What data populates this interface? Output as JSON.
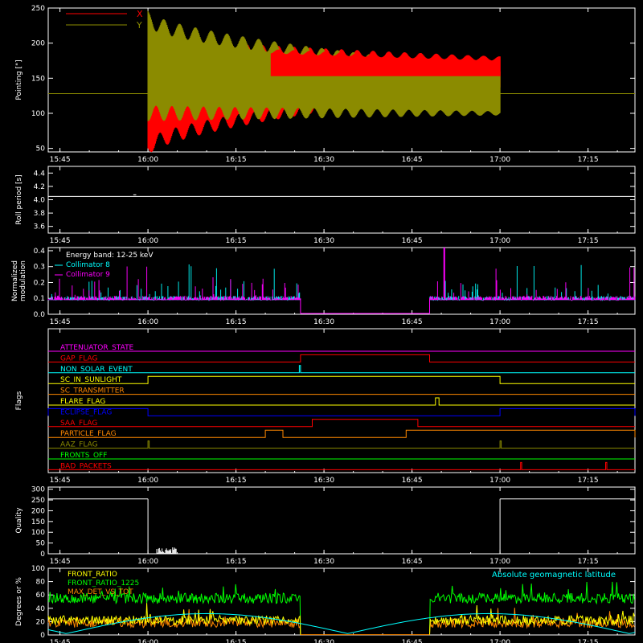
{
  "colors": {
    "bg": "#000000",
    "axis": "#ffffff",
    "x_series": "#ff0000",
    "y_series": "#8b8b00",
    "cyan": "#00ffff",
    "magenta": "#ff00ff",
    "green": "#00ff00",
    "orange": "#ff8800",
    "blue": "#0000ff",
    "yellow": "#ffff00"
  },
  "chart_data": [
    {
      "id": "pointing",
      "type": "line",
      "ylabel": "Pointing [\"]",
      "ylim": [
        45,
        250
      ],
      "yticks": [
        50,
        100,
        150,
        200,
        250
      ],
      "xtick_labels": [
        "15:45",
        "16:00",
        "16:15",
        "16:30",
        "16:45",
        "17:00",
        "17:15"
      ],
      "x_minutes": [
        -15,
        0,
        15,
        30,
        45,
        60,
        75
      ],
      "xlim_minutes": [
        -17,
        83
      ],
      "baseline": 128,
      "series": [
        {
          "name": "X",
          "color": "#ff0000",
          "start_min": 0,
          "end_min": 60,
          "upper_start": 200,
          "upper_end": 178,
          "lower_start": 50,
          "lower_end": 140
        },
        {
          "name": "Y",
          "color": "#8b8b00",
          "start_min": 0,
          "end_min": 60,
          "upper_start": 235,
          "upper_end": 160,
          "lower_start": 100,
          "lower_end": 100
        }
      ]
    },
    {
      "id": "roll",
      "type": "line",
      "ylabel": "Roll period [s]",
      "ylim": [
        3.5,
        4.5
      ],
      "yticks": [
        3.6,
        3.8,
        4.0,
        4.2,
        4.4
      ],
      "ytick_labels": [
        "3.6",
        "3.8",
        "4.0",
        "4.2",
        "4.4"
      ],
      "xtick_labels": [
        "15:45",
        "16:00",
        "16:15",
        "16:30",
        "16:45",
        "17:00",
        "17:15"
      ],
      "value": 4.05
    },
    {
      "id": "modulation",
      "type": "line",
      "ylabel_lines": [
        "Normalized",
        "modulation"
      ],
      "ylim": [
        0,
        0.42
      ],
      "yticks": [
        0.0,
        0.1,
        0.2,
        0.3,
        0.4
      ],
      "ytick_labels": [
        "0.0",
        "0.1",
        "0.2",
        "0.3",
        "0.4"
      ],
      "xtick_labels": [
        "15:45",
        "16:00",
        "16:15",
        "16:30",
        "16:45",
        "17:00",
        "17:15"
      ],
      "legend": [
        {
          "text": "Energy band: 12-25 keV",
          "color": "#ffffff"
        },
        {
          "text": "Collimator 8",
          "color": "#00ffff"
        },
        {
          "text": "Collimator 9",
          "color": "#ff00ff"
        }
      ],
      "gap_minutes": [
        26,
        48
      ],
      "typical_level": 0.1
    },
    {
      "id": "flags",
      "type": "line",
      "ylabel": "Flags",
      "xtick_labels": [
        "15:45",
        "16:00",
        "16:15",
        "16:30",
        "16:45",
        "17:00",
        "17:15"
      ],
      "flags": [
        {
          "name": "ATTENUATOR_STATE",
          "color": "#ff00ff",
          "segments": []
        },
        {
          "name": "GAP_FLAG",
          "color": "#ff0000",
          "segments": [
            [
              26,
              48
            ]
          ]
        },
        {
          "name": "NON_SOLAR_EVENT",
          "color": "#00ffff",
          "segments": [
            [
              25.8,
              26.0
            ]
          ]
        },
        {
          "name": "SC_IN_SUNLIGHT",
          "color": "#ffff00",
          "segments": [
            [
              0,
              60
            ]
          ]
        },
        {
          "name": "SC_TRANSMITTER",
          "color": "#ff8800",
          "segments": []
        },
        {
          "name": "FLARE_FLAG",
          "color": "#ffff00",
          "segments": [
            [
              49,
              49.6
            ]
          ]
        },
        {
          "name": "ECLIPSE_FLAG",
          "color": "#0000ff",
          "segments": [
            [
              -17,
              0
            ],
            [
              60,
              83
            ]
          ]
        },
        {
          "name": "SAA_FLAG",
          "color": "#ff0000",
          "segments": [
            [
              28,
              46
            ]
          ]
        },
        {
          "name": "PARTICLE_FLAG",
          "color": "#ff8800",
          "segments": [
            [
              20,
              23
            ],
            [
              44,
              83
            ]
          ]
        },
        {
          "name": "AAZ_FLAG",
          "color": "#8b8b00",
          "segments": [
            [
              0,
              0.2
            ],
            [
              60,
              60.2
            ]
          ]
        },
        {
          "name": "FRONTS_OFF",
          "color": "#00ff00",
          "segments": []
        },
        {
          "name": "BAD_PACKETS",
          "color": "#ff0000",
          "segments": [
            [
              63.5,
              63.7
            ],
            [
              78,
              78.2
            ]
          ]
        }
      ]
    },
    {
      "id": "quality",
      "type": "line",
      "ylabel": "Quality",
      "ylim": [
        0,
        310
      ],
      "yticks": [
        0,
        50,
        100,
        150,
        200,
        250,
        300
      ],
      "xtick_labels": [
        "15:45",
        "16:00",
        "16:15",
        "16:30",
        "16:45",
        "17:00",
        "17:15"
      ],
      "high_value": 255,
      "high_segments": [
        [
          -17,
          0
        ],
        [
          60,
          83
        ]
      ]
    },
    {
      "id": "latitude",
      "type": "line",
      "ylabel": "Degrees or %",
      "ylim": [
        0,
        100
      ],
      "yticks": [
        0,
        20,
        40,
        60,
        80,
        100
      ],
      "xtick_labels": [
        "15:45",
        "16:00",
        "16:15",
        "16:30",
        "16:45",
        "17:00",
        "17:15"
      ],
      "legend": [
        {
          "text": "FRONT_RATIO",
          "color": "#ffff00"
        },
        {
          "text": "FRONT_RATIO_1225",
          "color": "#00ff00"
        },
        {
          "text": "MAX_DET_VS_TOT",
          "color": "#ff8800"
        }
      ],
      "latitude_label": "Absolute geomagnetic latitude",
      "series": [
        {
          "name": "FRONT_RATIO_1225",
          "color": "#00ff00",
          "level": 55
        },
        {
          "name": "MAX_DET_VS_TOT",
          "color": "#ff8800",
          "level": 18
        },
        {
          "name": "FRONT_RATIO",
          "color": "#ffff00",
          "level": 22
        },
        {
          "name": "Absolute geomagnetic latitude",
          "color": "#00ffff"
        }
      ]
    }
  ]
}
